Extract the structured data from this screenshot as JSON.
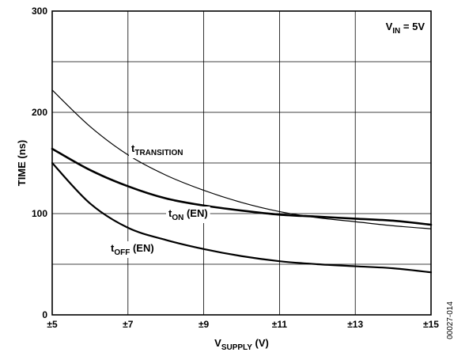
{
  "chart_data": {
    "type": "line",
    "title": "",
    "xlabel": {
      "main": "V",
      "sub": "SUPPLY",
      "suffix": " (V)"
    },
    "ylabel": "TIME (ns)",
    "xlim": [
      5,
      15
    ],
    "ylim": [
      0,
      300
    ],
    "x_ticks": [
      5,
      7,
      9,
      11,
      13,
      15
    ],
    "x_tick_labels": [
      "±5",
      "±7",
      "±9",
      "±11",
      "±13",
      "±15"
    ],
    "y_ticks": [
      0,
      100,
      200,
      300
    ],
    "y_tick_labels": [
      "0",
      "100",
      "200",
      "300"
    ],
    "grid": true,
    "annotation": {
      "main": "V",
      "sub": "IN",
      "suffix": " = 5V"
    },
    "figure_code": "00027-014",
    "series": [
      {
        "id": "t_transition",
        "label_main": "t",
        "label_sub": "TRANSITION",
        "label_suffix": "",
        "stroke_width": 1.2,
        "x": [
          5,
          6,
          7,
          8,
          9,
          10,
          11,
          12,
          13,
          14,
          15
        ],
        "y": [
          222,
          186,
          158,
          138,
          123,
          111,
          102,
          96,
          92,
          88,
          85
        ]
      },
      {
        "id": "t_on",
        "label_main": "t",
        "label_sub": "ON",
        "label_suffix": " (EN)",
        "stroke_width": 2.6,
        "x": [
          5,
          6,
          7,
          8,
          9,
          10,
          11,
          12,
          13,
          14,
          15
        ],
        "y": [
          164,
          143,
          127,
          115,
          108,
          103,
          99,
          97,
          95,
          93,
          89
        ]
      },
      {
        "id": "t_off",
        "label_main": "t",
        "label_sub": "OFF",
        "label_suffix": " (EN)",
        "stroke_width": 2.2,
        "x": [
          5,
          6,
          7,
          8,
          9,
          10,
          11,
          12,
          13,
          14,
          15
        ],
        "y": [
          150,
          110,
          86,
          74,
          65,
          58,
          53,
          50,
          48,
          46,
          42
        ]
      }
    ]
  }
}
